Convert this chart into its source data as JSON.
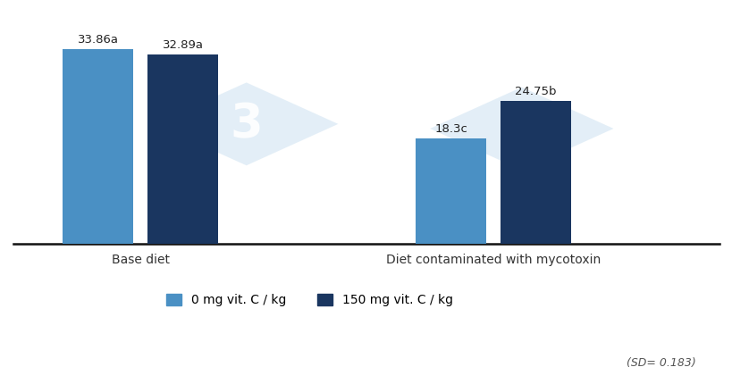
{
  "groups": [
    "Base diet",
    "Diet contaminated with mycotoxin"
  ],
  "series": [
    {
      "label": "0 mg vit. C / kg",
      "color": "#4A90C4",
      "values": [
        33.86,
        18.3
      ],
      "annotations": [
        "33.86a",
        "18.3c"
      ]
    },
    {
      "label": "150 mg vit. C / kg",
      "color": "#1A3660",
      "values": [
        32.89,
        24.75
      ],
      "annotations": [
        "32.89a",
        "24.75b"
      ]
    }
  ],
  "ylim": [
    0,
    40
  ],
  "bar_width": 0.1,
  "group_centers": [
    0.18,
    0.68
  ],
  "xlim": [
    0,
    1.0
  ],
  "sd_label": "(SD= 0.183)",
  "background_color": "#ffffff",
  "annotation_fontsize": 9.5,
  "axis_label_fontsize": 11,
  "legend_fontsize": 10,
  "tick_label_fontsize": 10,
  "bar_gap": 0.02
}
